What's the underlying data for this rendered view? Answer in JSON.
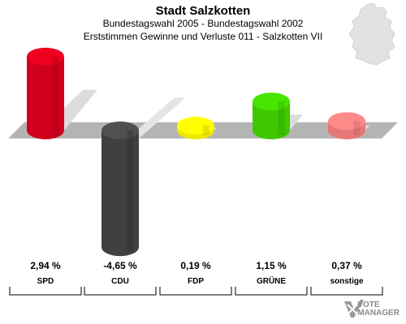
{
  "header": {
    "title": "Stadt Salzkotten",
    "subtitle": "Bundestagswahl 2005 - Bundestagswahl 2002",
    "subtitle2": "Erststimmen Gewinne und Verluste 011 - Salzkotten VII"
  },
  "watermark": {
    "line1": "VOTE",
    "line2": "MANAGER"
  },
  "chart_data": {
    "type": "bar",
    "title": "Stadt Salzkotten",
    "categories": [
      "SPD",
      "CDU",
      "FDP",
      "GRÜNE",
      "sonstige"
    ],
    "values": [
      2.94,
      -4.65,
      0.19,
      1.15,
      0.37
    ],
    "value_labels": [
      "2,94 %",
      "-4,65 %",
      "0,19 %",
      "1,15 %",
      "0,37 %"
    ],
    "colors": [
      "#d0001c",
      "#404040",
      "#f0e800",
      "#3ec800",
      "#e87878"
    ],
    "grid": false,
    "legend": "none"
  }
}
